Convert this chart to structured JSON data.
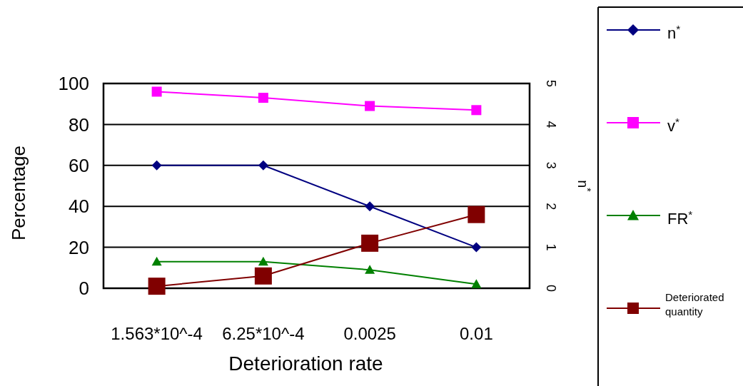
{
  "chart_data": {
    "type": "line",
    "xlabel": "Deterioration rate",
    "ylabel": "Percentage",
    "y2label": "n$^{*}$",
    "categories": [
      "1.563*10^-4",
      "6.25*10^-4",
      "0.0025",
      "0.01"
    ],
    "series": [
      {
        "name": "n$^{*}$",
        "color": "#000080",
        "values": [
          3,
          3,
          2,
          1
        ],
        "axis": "y2",
        "marker": "diamond"
      },
      {
        "name": "v$^{*}$",
        "color": "#ff00ff",
        "values": [
          96,
          93,
          89,
          87
        ],
        "marker": "square"
      },
      {
        "name": "FR$^{*}$",
        "color": "#008000",
        "values": [
          13,
          13,
          9,
          2
        ],
        "marker": "triangle"
      },
      {
        "name": "Deteriorated quantity",
        "color": "#800000",
        "values": [
          1,
          6,
          22,
          36
        ],
        "marker": "square"
      }
    ],
    "ylim": [
      0,
      100
    ],
    "yticks": [
      0,
      20,
      40,
      60,
      80,
      100
    ],
    "y2lim": [
      0,
      5
    ],
    "y2ticks": [
      0,
      1,
      2,
      3,
      4,
      5
    ],
    "grid": "y",
    "legend": "right",
    "line_style": "solid"
  }
}
